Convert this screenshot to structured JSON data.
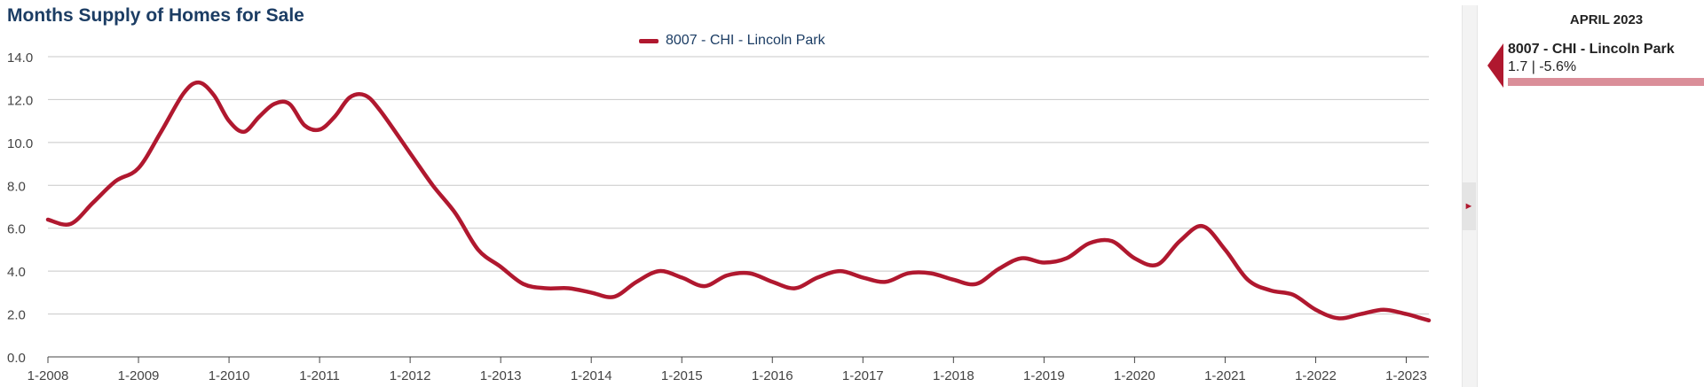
{
  "title": "Months Supply of Homes for Sale",
  "accent_color": "#b0182f",
  "chart_data": {
    "type": "line",
    "title": "Months Supply of Homes for Sale",
    "xlabel": "",
    "ylabel": "",
    "ylim": [
      0,
      14
    ],
    "y_ticks": [
      "0.0",
      "2.0",
      "4.0",
      "6.0",
      "8.0",
      "10.0",
      "12.0",
      "14.0"
    ],
    "x_ticks": [
      "1-2008",
      "1-2009",
      "1-2010",
      "1-2011",
      "1-2012",
      "1-2013",
      "1-2014",
      "1-2015",
      "1-2016",
      "1-2017",
      "1-2018",
      "1-2019",
      "1-2020",
      "1-2021",
      "1-2022",
      "1-2023"
    ],
    "grid": true,
    "legend_position": "top-center",
    "series": [
      {
        "name": "8007 - CHI - Lincoln Park",
        "color": "#b0182f",
        "points": [
          [
            "1-2008",
            6.4
          ],
          [
            "4-2008",
            6.2
          ],
          [
            "7-2008",
            7.2
          ],
          [
            "10-2008",
            8.2
          ],
          [
            "1-2009",
            8.8
          ],
          [
            "4-2009",
            10.5
          ],
          [
            "7-2009",
            12.3
          ],
          [
            "9-2009",
            12.8
          ],
          [
            "11-2009",
            12.2
          ],
          [
            "1-2010",
            11.0
          ],
          [
            "3-2010",
            10.5
          ],
          [
            "5-2010",
            11.2
          ],
          [
            "7-2010",
            11.8
          ],
          [
            "9-2010",
            11.8
          ],
          [
            "11-2010",
            10.8
          ],
          [
            "1-2011",
            10.6
          ],
          [
            "3-2011",
            11.2
          ],
          [
            "5-2011",
            12.1
          ],
          [
            "7-2011",
            12.2
          ],
          [
            "9-2011",
            11.5
          ],
          [
            "1-2012",
            9.5
          ],
          [
            "4-2012",
            8.0
          ],
          [
            "7-2012",
            6.7
          ],
          [
            "10-2012",
            5.0
          ],
          [
            "1-2013",
            4.2
          ],
          [
            "4-2013",
            3.4
          ],
          [
            "7-2013",
            3.2
          ],
          [
            "10-2013",
            3.2
          ],
          [
            "1-2014",
            3.0
          ],
          [
            "4-2014",
            2.8
          ],
          [
            "7-2014",
            3.5
          ],
          [
            "10-2014",
            4.0
          ],
          [
            "1-2015",
            3.7
          ],
          [
            "4-2015",
            3.3
          ],
          [
            "7-2015",
            3.8
          ],
          [
            "10-2015",
            3.9
          ],
          [
            "1-2016",
            3.5
          ],
          [
            "4-2016",
            3.2
          ],
          [
            "7-2016",
            3.7
          ],
          [
            "10-2016",
            4.0
          ],
          [
            "1-2017",
            3.7
          ],
          [
            "4-2017",
            3.5
          ],
          [
            "7-2017",
            3.9
          ],
          [
            "10-2017",
            3.9
          ],
          [
            "1-2018",
            3.6
          ],
          [
            "4-2018",
            3.4
          ],
          [
            "7-2018",
            4.1
          ],
          [
            "10-2018",
            4.6
          ],
          [
            "1-2019",
            4.4
          ],
          [
            "4-2019",
            4.6
          ],
          [
            "7-2019",
            5.3
          ],
          [
            "10-2019",
            5.4
          ],
          [
            "1-2020",
            4.6
          ],
          [
            "4-2020",
            4.3
          ],
          [
            "7-2020",
            5.4
          ],
          [
            "10-2020",
            6.1
          ],
          [
            "1-2021",
            5.0
          ],
          [
            "4-2021",
            3.6
          ],
          [
            "7-2021",
            3.1
          ],
          [
            "10-2021",
            2.9
          ],
          [
            "1-2022",
            2.2
          ],
          [
            "4-2022",
            1.8
          ],
          [
            "7-2022",
            2.0
          ],
          [
            "10-2022",
            2.2
          ],
          [
            "1-2023",
            2.0
          ],
          [
            "3-2023",
            1.8
          ],
          [
            "4-2023",
            1.7
          ]
        ]
      }
    ]
  },
  "legend": {
    "label": "8007 - CHI - Lincoln Park"
  },
  "side_panel": {
    "period": "APRIL 2023",
    "name": "8007 - CHI - Lincoln Park",
    "value_text": "1.7 | -5.6%",
    "value": 1.7
  }
}
